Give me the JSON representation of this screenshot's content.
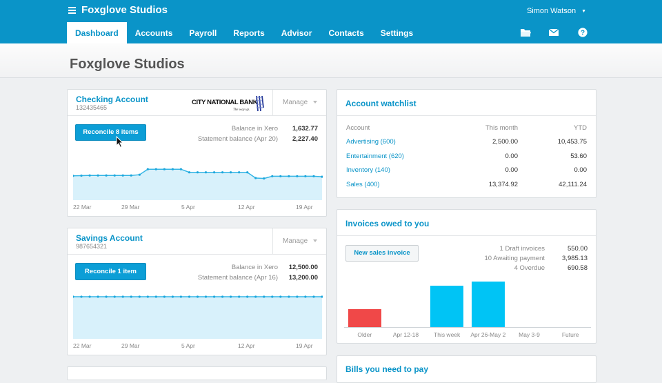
{
  "app": {
    "org": "Foxglove Studios",
    "user": "Simon Watson"
  },
  "nav": {
    "tabs": [
      "Dashboard",
      "Accounts",
      "Payroll",
      "Reports",
      "Advisor",
      "Contacts",
      "Settings"
    ],
    "active": "Dashboard"
  },
  "icons": {
    "files": "folder-icon",
    "mail": "mail-icon",
    "help": "help-icon"
  },
  "page": {
    "title": "Foxglove Studios"
  },
  "checking": {
    "name": "Checking Account",
    "number": "132435465",
    "bank_logo": {
      "name": "CITY NATIONAL BANK",
      "tagline": "The way up."
    },
    "manage": "Manage",
    "reconcile": "Reconcile 8 items",
    "balance_xero_label": "Balance in Xero",
    "balance_xero": "1,632.77",
    "statement_label": "Statement balance (Apr 20)",
    "statement": "2,227.40",
    "chart_dates": [
      "22 Mar",
      "29 Mar",
      "5 Apr",
      "12 Apr",
      "19 Apr"
    ]
  },
  "savings": {
    "name": "Savings Account",
    "number": "987654321",
    "manage": "Manage",
    "reconcile": "Reconcile 1 item",
    "balance_xero_label": "Balance in Xero",
    "balance_xero": "12,500.00",
    "statement_label": "Statement balance (Apr 16)",
    "statement": "13,200.00",
    "chart_dates": [
      "22 Mar",
      "29 Mar",
      "5 Apr",
      "12 Apr",
      "19 Apr"
    ]
  },
  "watchlist": {
    "title": "Account watchlist",
    "headers": [
      "Account",
      "This month",
      "YTD"
    ],
    "rows": [
      {
        "account": "Advertising (600)",
        "month": "2,500.00",
        "ytd": "10,453.75"
      },
      {
        "account": "Entertainment (620)",
        "month": "0.00",
        "ytd": "53.60"
      },
      {
        "account": "Inventory (140)",
        "month": "0.00",
        "ytd": "0.00"
      },
      {
        "account": "Sales (400)",
        "month": "13,374.92",
        "ytd": "42,111.24"
      }
    ]
  },
  "invoices": {
    "title": "Invoices owed to you",
    "new_button": "New sales invoice",
    "summary": [
      {
        "label": "1 Draft invoices",
        "value": "550.00"
      },
      {
        "label": "10 Awaiting payment",
        "value": "3,985.13"
      },
      {
        "label": "4 Overdue",
        "value": "690.58"
      }
    ]
  },
  "bills": {
    "title": "Bills you need to pay"
  },
  "chart_data": [
    {
      "type": "area",
      "title": "Checking Account",
      "x": [
        "22 Mar",
        "23 Mar",
        "24 Mar",
        "25 Mar",
        "26 Mar",
        "27 Mar",
        "28 Mar",
        "29 Mar",
        "30 Mar",
        "31 Mar",
        "1 Apr",
        "2 Apr",
        "3 Apr",
        "4 Apr",
        "5 Apr",
        "6 Apr",
        "7 Apr",
        "8 Apr",
        "9 Apr",
        "10 Apr",
        "11 Apr",
        "12 Apr",
        "13 Apr",
        "14 Apr",
        "15 Apr",
        "16 Apr",
        "17 Apr",
        "18 Apr",
        "19 Apr",
        "20 Apr",
        "21 Apr"
      ],
      "values": [
        55,
        55.5,
        56,
        56,
        56,
        56,
        56,
        56,
        57.5,
        70,
        70,
        70,
        70,
        70,
        63,
        63,
        63,
        63,
        63,
        63,
        63,
        63,
        50,
        49,
        54,
        54,
        54,
        54,
        54,
        54,
        53
      ],
      "ylim": [
        0,
        100
      ],
      "xticks": [
        "22 Mar",
        "29 Mar",
        "5 Apr",
        "12 Apr",
        "19 Apr"
      ]
    },
    {
      "type": "area",
      "title": "Savings Account",
      "x": [
        "22 Mar",
        "23 Mar",
        "24 Mar",
        "25 Mar",
        "26 Mar",
        "27 Mar",
        "28 Mar",
        "29 Mar",
        "30 Mar",
        "31 Mar",
        "1 Apr",
        "2 Apr",
        "3 Apr",
        "4 Apr",
        "5 Apr",
        "6 Apr",
        "7 Apr",
        "8 Apr",
        "9 Apr",
        "10 Apr",
        "11 Apr",
        "12 Apr",
        "13 Apr",
        "14 Apr",
        "15 Apr",
        "16 Apr",
        "17 Apr",
        "18 Apr",
        "19 Apr",
        "20 Apr",
        "21 Apr"
      ],
      "values": [
        100,
        100,
        100,
        100,
        100,
        100,
        100,
        100,
        100,
        100,
        100,
        100,
        100,
        100,
        100,
        100,
        100,
        100,
        100,
        100,
        100,
        100,
        100,
        100,
        100,
        100,
        100,
        100,
        100,
        100,
        100
      ],
      "ylim": [
        0,
        100
      ],
      "xticks": [
        "22 Mar",
        "29 Mar",
        "5 Apr",
        "12 Apr",
        "19 Apr"
      ]
    },
    {
      "type": "bar",
      "title": "Invoices owed to you",
      "categories": [
        "Older",
        "Apr 12-18",
        "This week",
        "Apr 26-May 2",
        "May 3-9",
        "Future"
      ],
      "values": [
        470,
        0,
        1080,
        1200,
        0,
        0
      ],
      "colors": [
        "#f04848",
        "#00c4f5",
        "#00c4f5",
        "#00c4f5",
        "#00c4f5",
        "#00c4f5"
      ],
      "ylim": [
        0,
        1300
      ]
    }
  ]
}
